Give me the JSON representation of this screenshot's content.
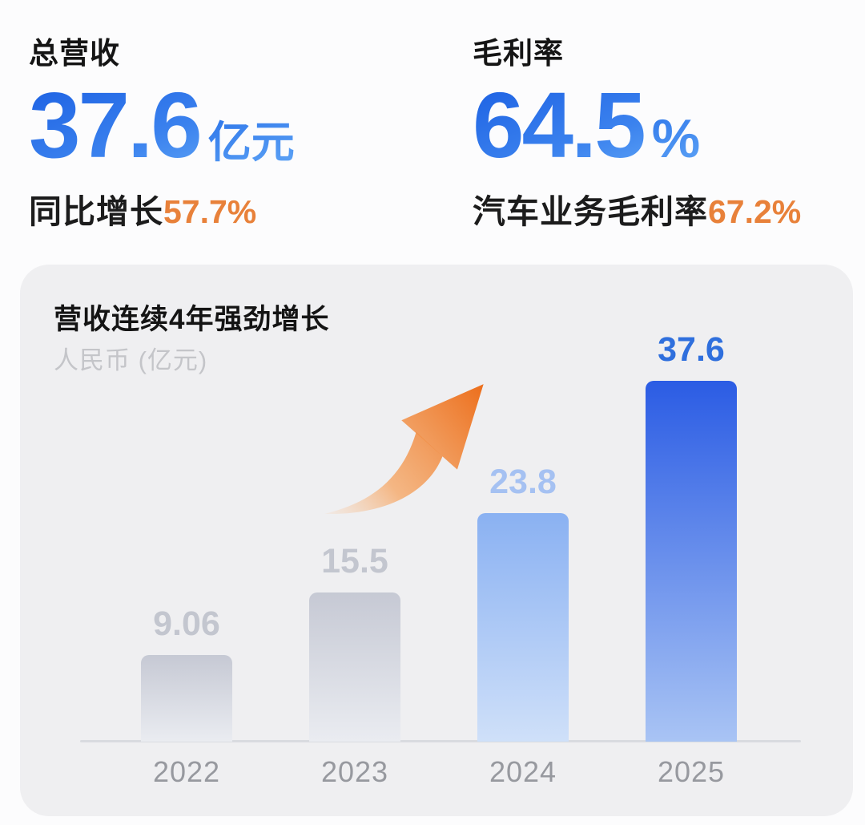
{
  "stats": [
    {
      "title": "总营收",
      "value": "37.6",
      "unit": "亿元",
      "sub_label": "同比增长",
      "sub_value": "57.7%"
    },
    {
      "title": "毛利率",
      "value": "64.5",
      "unit": "%",
      "sub_label": "汽车业务毛利率",
      "sub_value": "67.2%"
    }
  ],
  "chart_data": {
    "type": "bar",
    "title": "营收连续4年强劲增长",
    "subtitle": "人民币 (亿元)",
    "categories": [
      "2022",
      "2023",
      "2024",
      "2025"
    ],
    "values": [
      9.06,
      15.5,
      23.8,
      37.6
    ],
    "value_labels": [
      "9.06",
      "15.5",
      "23.8",
      "37.6"
    ],
    "ylim": [
      0,
      37.6
    ],
    "grid": false,
    "legend": false,
    "annotations": [
      {
        "type": "arrow",
        "meaning": "upward-growth-trend",
        "color": "#ed6f1d"
      }
    ],
    "bar_colors": [
      [
        "#c6c9d4",
        "#eaecf1"
      ],
      [
        "#c6c9d4",
        "#eaecf1"
      ],
      [
        "#8ab1f2",
        "#cfe0f9"
      ],
      [
        "#2b5ce4",
        "#a9c4f4"
      ]
    ],
    "label_colors": [
      "#c3c6cf",
      "#c3c6cf",
      "#a5c1f2",
      "#2f6fdd"
    ]
  },
  "colors": {
    "page_bg": "#fcfcfd",
    "card_bg": "#efeff1",
    "accent_blue": "#2a6ae4",
    "accent_orange": "#e8813a",
    "axis_line": "#d9dbe0",
    "year_label": "#97999f"
  }
}
